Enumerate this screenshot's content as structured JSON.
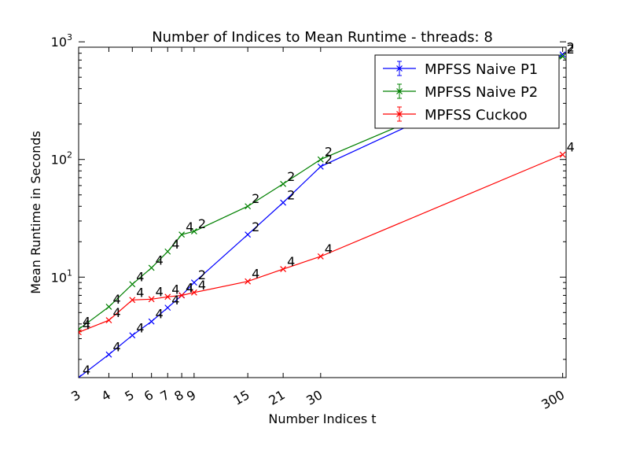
{
  "chart_data": {
    "type": "line",
    "title": "Number of Indices to Mean Runtime - threads: 8",
    "xlabel": "Number Indices t",
    "ylabel": "Mean Runtime in Seconds",
    "x_scale": "log",
    "y_scale": "log",
    "xlim": [
      3,
      310
    ],
    "ylim": [
      1.4,
      900
    ],
    "x_ticks": [
      3,
      4,
      5,
      6,
      7,
      8,
      9,
      15,
      21,
      30,
      300
    ],
    "y_ticks": [
      {
        "value": 10,
        "base": "10",
        "exp": "1"
      },
      {
        "value": 100,
        "base": "10",
        "exp": "2"
      },
      {
        "value": 1000,
        "base": "10",
        "exp": "3"
      }
    ],
    "legend_position": "top-right",
    "grid": false,
    "series": [
      {
        "name": "MPFSS Naive P1",
        "color": "#0000ff",
        "x": [
          3,
          4,
          5,
          6,
          7,
          8,
          9,
          15,
          21,
          30,
          300
        ],
        "y": [
          1.4,
          2.2,
          3.2,
          4.2,
          5.5,
          7.0,
          9.0,
          23,
          43,
          87,
          780
        ],
        "labels": [
          "4",
          "4",
          "4",
          "4",
          "4",
          "4",
          "2",
          "2",
          "2",
          "2",
          "2"
        ]
      },
      {
        "name": "MPFSS Naive P2",
        "color": "#008000",
        "x": [
          3,
          4,
          5,
          6,
          7,
          8,
          9,
          15,
          21,
          30,
          300
        ],
        "y": [
          3.6,
          5.6,
          8.7,
          12,
          16.5,
          23,
          24.5,
          40,
          62,
          100,
          750
        ],
        "labels": [
          "4",
          "4",
          "4",
          "4",
          "4",
          "4",
          "2",
          "2",
          "2",
          "2",
          "2"
        ]
      },
      {
        "name": "MPFSS Cuckoo",
        "color": "#ff0000",
        "x": [
          3,
          4,
          5,
          6,
          7,
          8,
          9,
          15,
          21,
          30,
          300
        ],
        "y": [
          3.4,
          4.3,
          6.4,
          6.5,
          6.8,
          7.0,
          7.4,
          9.2,
          11.7,
          15,
          110
        ],
        "labels": [
          "4",
          "4",
          "4",
          "4",
          "4",
          "4",
          "4",
          "4",
          "4",
          "4",
          "4"
        ]
      }
    ]
  }
}
